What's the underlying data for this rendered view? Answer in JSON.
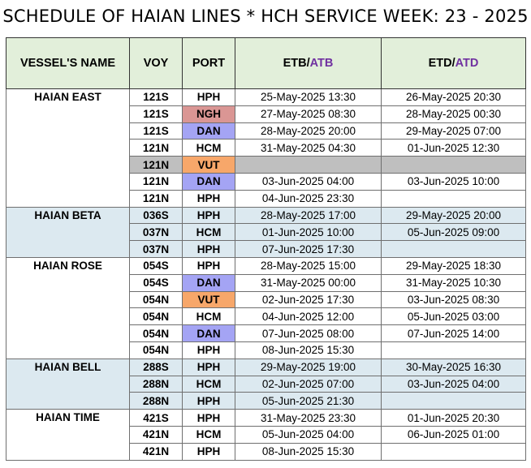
{
  "title": "SCHEDULE OF HAIAN LINES * HCH SERVICE WEEK: 23 - 2025",
  "headers": {
    "vessel": "VESSEL'S NAME",
    "voy": "VOY",
    "port": "PORT",
    "etb": "ETB/",
    "atb": "ATB",
    "etd": "ETD/",
    "atd": "ATD"
  },
  "colors": {
    "header_bg": "#e2efda",
    "ngh": "#da9694",
    "dan": "#a4a4f4",
    "vut": "#f7a76a",
    "gray_row": "#bfbfbf",
    "blue_group": "#dce9f0",
    "atb_text": "#7030a0"
  },
  "vessels": [
    {
      "name": "HAIAN EAST",
      "rows": [
        {
          "voy": "121S",
          "port": "HPH",
          "etb": "25-May-2025 13:30",
          "etd": "26-May-2025 20:30"
        },
        {
          "voy": "121S",
          "port": "NGH",
          "etb": "27-May-2025 08:30",
          "etd": "28-May-2025 00:30"
        },
        {
          "voy": "121S",
          "port": "DAN",
          "etb": "28-May-2025 20:00",
          "etd": "29-May-2025 07:00"
        },
        {
          "voy": "121N",
          "port": "HCM",
          "etb": "31-May-2025 04:30",
          "etd": "01-Jun-2025 12:30"
        },
        {
          "voy": "121N",
          "port": "VUT",
          "etb": "",
          "etd": ""
        },
        {
          "voy": "121N",
          "port": "DAN",
          "etb": "03-Jun-2025 04:00",
          "etd": "03-Jun-2025 10:00"
        },
        {
          "voy": "121N",
          "port": "HPH",
          "etb": "04-Jun-2025 23:30",
          "etd": ""
        }
      ]
    },
    {
      "name": "HAIAN BETA",
      "rows": [
        {
          "voy": "036S",
          "port": "HPH",
          "etb": "28-May-2025 17:00",
          "etd": "29-May-2025 20:00"
        },
        {
          "voy": "037N",
          "port": "HCM",
          "etb": "01-Jun-2025 10:00",
          "etd": "05-Jun-2025 09:00"
        },
        {
          "voy": "037N",
          "port": "HPH",
          "etb": "07-Jun-2025 17:30",
          "etd": ""
        }
      ]
    },
    {
      "name": "HAIAN ROSE",
      "rows": [
        {
          "voy": "054S",
          "port": "HPH",
          "etb": "28-May-2025 15:00",
          "etd": "29-May-2025 18:30"
        },
        {
          "voy": "054S",
          "port": "DAN",
          "etb": "31-May-2025 00:00",
          "etd": "31-May-2025 10:30"
        },
        {
          "voy": "054N",
          "port": "VUT",
          "etb": "02-Jun-2025 17:30",
          "etd": "03-Jun-2025 08:30"
        },
        {
          "voy": "054N",
          "port": "HCM",
          "etb": "04-Jun-2025 12:00",
          "etd": "05-Jun-2025 03:00"
        },
        {
          "voy": "054N",
          "port": "DAN",
          "etb": "07-Jun-2025 08:00",
          "etd": "07-Jun-2025 14:00"
        },
        {
          "voy": "054N",
          "port": "HPH",
          "etb": "08-Jun-2025 15:30",
          "etd": ""
        }
      ]
    },
    {
      "name": "HAIAN BELL",
      "rows": [
        {
          "voy": "288S",
          "port": "HPH",
          "etb": "29-May-2025 19:00",
          "etd": "30-May-2025 16:30"
        },
        {
          "voy": "288N",
          "port": "HCM",
          "etb": "02-Jun-2025 07:00",
          "etd": "03-Jun-2025 04:00"
        },
        {
          "voy": "288N",
          "port": "HPH",
          "etb": "05-Jun-2025 21:30",
          "etd": ""
        }
      ]
    },
    {
      "name": "HAIAN TIME",
      "rows": [
        {
          "voy": "421S",
          "port": "HPH",
          "etb": "31-May-2025 23:30",
          "etd": "01-Jun-2025 20:30"
        },
        {
          "voy": "421N",
          "port": "HCM",
          "etb": "05-Jun-2025 04:00",
          "etd": "06-Jun-2025 01:00"
        },
        {
          "voy": "421N",
          "port": "HPH",
          "etb": "08-Jun-2025 15:30",
          "etd": ""
        }
      ]
    }
  ]
}
